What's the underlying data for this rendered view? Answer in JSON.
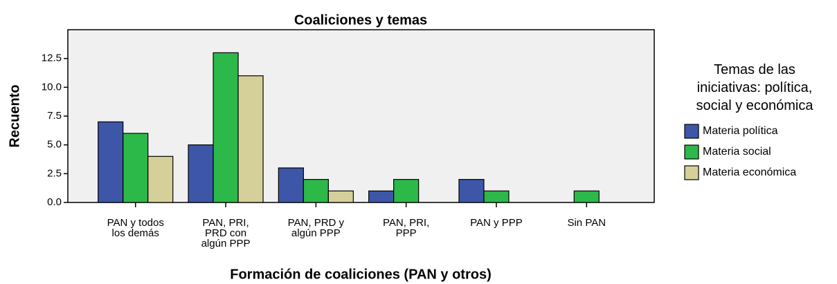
{
  "chart_data": {
    "type": "bar",
    "title": "Coaliciones y temas",
    "x_label": "Formación de coaliciones (PAN y otros)",
    "y_label": "Recuento",
    "legend_title": "Temas de las\niniciativas: política,\nsocial y económica",
    "legend_position": "right",
    "categories": [
      "PAN y todos\nlos demás",
      "PAN, PRI,\nPRD con\nalgún  PPP",
      "PAN, PRD y\nalgún PPP",
      "PAN, PRI,\nPPP",
      "PAN y PPP",
      "Sin PAN"
    ],
    "series": [
      {
        "name": "Materia política",
        "color": "#3d56a8",
        "values": [
          7,
          5,
          3,
          1,
          2,
          0
        ]
      },
      {
        "name": "Materia social",
        "color": "#2db84a",
        "values": [
          6,
          13,
          2,
          2,
          1,
          1
        ]
      },
      {
        "name": "Materia económica",
        "color": "#d5d09a",
        "values": [
          4,
          11,
          1,
          0,
          0,
          0
        ]
      }
    ],
    "ylim": [
      0,
      15
    ],
    "yticks": [
      {
        "value": 0,
        "label": "0.0"
      },
      {
        "value": 2.5,
        "label": "2.5"
      },
      {
        "value": 5,
        "label": "5.0"
      },
      {
        "value": 7.5,
        "label": "7.5"
      },
      {
        "value": 10,
        "label": "10.0"
      },
      {
        "value": 12.5,
        "label": "12.5"
      }
    ],
    "grid": false
  }
}
